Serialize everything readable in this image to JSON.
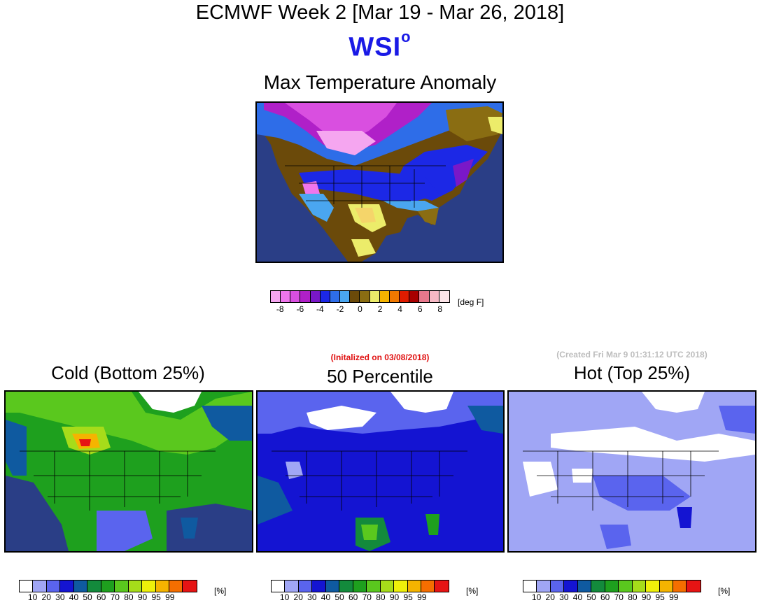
{
  "header": {
    "title": "ECMWF Week 2 [Mar 19 - Mar 26, 2018]",
    "logo_text": "WSI",
    "logo_sup": "o",
    "subtitle": "Max Temperature Anomaly"
  },
  "anomaly_legend": {
    "colors": [
      "#f5a6f0",
      "#ef76ec",
      "#d94fe0",
      "#b020c8",
      "#7a18c8",
      "#1c28e6",
      "#2e6de8",
      "#4aa6f0",
      "#6b4a0a",
      "#8a6d12",
      "#ecec6a",
      "#f5b400",
      "#f07800",
      "#e01c00",
      "#a80000",
      "#e8788c",
      "#f6b8c4",
      "#fde4e8"
    ],
    "ticks": [
      "-8",
      "-6",
      "-4",
      "-2",
      "0",
      "2",
      "4",
      "6",
      "8"
    ],
    "unit": "[deg F]"
  },
  "meta": {
    "initialized": "(Initalized on 03/08/2018)",
    "created": "(Created Fri Mar  9 01:31:12 UTC 2018)"
  },
  "panels": [
    {
      "title": "Cold (Bottom 25%)"
    },
    {
      "title": "50 Percentile"
    },
    {
      "title": "Hot (Top 25%)"
    }
  ],
  "percent_legend": {
    "colors": [
      "#ffffff",
      "#a0a6f5",
      "#5a64ee",
      "#1414d2",
      "#0f5aa0",
      "#138a3c",
      "#1ea01e",
      "#5ac81e",
      "#a6dc1a",
      "#eef00a",
      "#f5b400",
      "#f56e00",
      "#e61414"
    ],
    "ticks": [
      "10",
      "20",
      "30",
      "40",
      "50",
      "60",
      "70",
      "80",
      "90",
      "95",
      "99"
    ],
    "unit": "[%]"
  }
}
